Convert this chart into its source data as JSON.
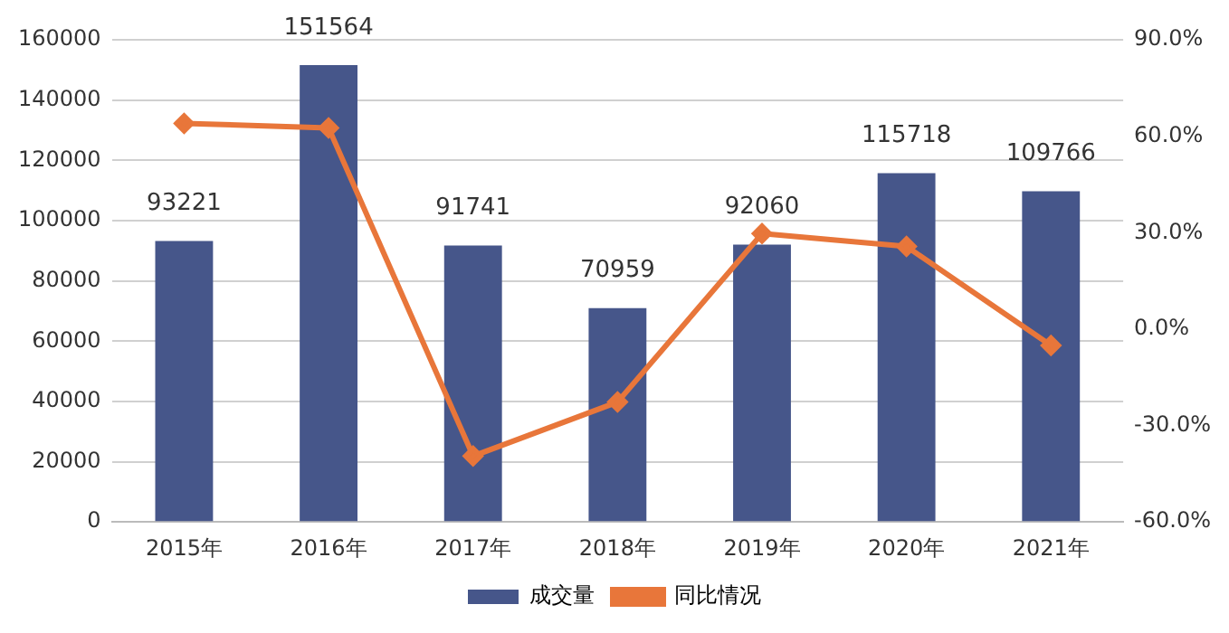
{
  "chart_data": {
    "type": "bar",
    "categories": [
      "2015年",
      "2016年",
      "2017年",
      "2018年",
      "2019年",
      "2020年",
      "2021年"
    ],
    "series": [
      {
        "name": "成交量",
        "color": "#46568a",
        "values": [
          93221,
          151564,
          91741,
          70959,
          92060,
          115718,
          109766
        ],
        "value_labels": [
          "93221",
          "151564",
          "91741",
          "70959",
          "92060",
          "115718",
          "109766"
        ]
      },
      {
        "name": "同比情况",
        "type": "line",
        "axis": "y2",
        "color": "#e8763a",
        "marker": "diamond",
        "values": [
          64,
          62.6,
          -39.5,
          -22.7,
          29.7,
          25.7,
          -5.1
        ]
      }
    ],
    "ylim": [
      0,
      160000
    ],
    "yticks": [
      0,
      20000,
      40000,
      60000,
      80000,
      100000,
      120000,
      140000,
      160000
    ],
    "y2lim": [
      -60,
      90
    ],
    "y2ticks": [
      {
        "value": -60,
        "label": "-60.0%"
      },
      {
        "value": -30,
        "label": "-30.0%"
      },
      {
        "value": 0,
        "label": "0.0%"
      },
      {
        "value": 30,
        "label": "30.0%"
      },
      {
        "value": 60,
        "label": "60.0%"
      },
      {
        "value": 90,
        "label": "90.0%"
      }
    ],
    "grid": "y",
    "legend": "bottom"
  }
}
